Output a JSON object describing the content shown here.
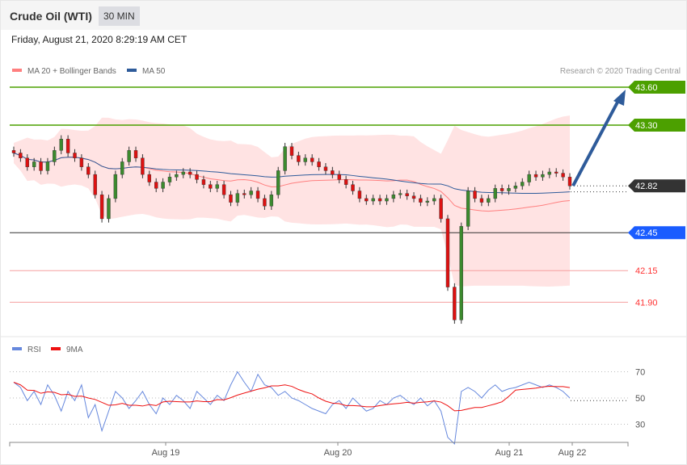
{
  "header": {
    "title": "Crude Oil (WTI)",
    "timeframe": "30 MIN",
    "date": "Friday, August 21, 2020 8:29:19 AM CET"
  },
  "colors": {
    "bb": "#ff7f7f",
    "ma50": "#2e5b9a",
    "up": "#3c8a2e",
    "down": "#d11",
    "resist": "#4ca000",
    "pivot": "#1a5cff",
    "support": "#ff3333",
    "last": "#333333",
    "rsi": "#6688dd",
    "rsi_ma": "#ee1111"
  },
  "chart_data": [
    {
      "type": "candlestick",
      "legend": [
        {
          "name": "MA 20 + Bollinger Bands"
        },
        {
          "name": "MA 50"
        }
      ],
      "credit": "Research © 2020 Trading Central",
      "closes": [
        43.08,
        43.04,
        42.97,
        43.01,
        42.94,
        43.01,
        43.1,
        43.19,
        43.08,
        43.04,
        42.97,
        42.91,
        42.75,
        42.56,
        42.72,
        42.91,
        43.01,
        43.1,
        43.04,
        42.91,
        42.85,
        42.8,
        42.85,
        42.89,
        42.91,
        42.93,
        42.91,
        42.87,
        42.83,
        42.8,
        42.83,
        42.75,
        42.69,
        42.76,
        42.75,
        42.78,
        42.72,
        42.66,
        42.75,
        42.94,
        43.13,
        43.06,
        43.01,
        43.04,
        43.01,
        42.97,
        42.94,
        42.91,
        42.87,
        42.83,
        42.78,
        42.72,
        42.7,
        42.72,
        42.7,
        42.72,
        42.75,
        42.76,
        42.74,
        42.72,
        42.69,
        42.7,
        42.72,
        42.56,
        42.02,
        41.76,
        42.5,
        42.78,
        42.72,
        42.69,
        42.72,
        42.8,
        42.78,
        42.8,
        42.82,
        42.85,
        42.91,
        42.89,
        42.91,
        42.93,
        42.92,
        42.89,
        42.82
      ],
      "levels": [
        {
          "value": 43.6,
          "label": "43.60",
          "kind": "resistance"
        },
        {
          "value": 43.3,
          "label": "43.30",
          "kind": "resistance"
        },
        {
          "value": 42.82,
          "label": "42.82",
          "kind": "last"
        },
        {
          "value": 42.45,
          "label": "42.45",
          "kind": "pivot"
        },
        {
          "value": 42.15,
          "label": "42.15",
          "kind": "support"
        },
        {
          "value": 41.9,
          "label": "41.90",
          "kind": "support"
        }
      ],
      "target_arrow": {
        "from": 42.82,
        "to": 43.6
      },
      "xticks": [
        "Aug 19",
        "Aug 20",
        "Aug 21",
        "Aug 22"
      ]
    },
    {
      "type": "line",
      "legend": [
        {
          "name": "RSI"
        },
        {
          "name": "9MA"
        }
      ],
      "yticks": [
        70,
        50,
        30
      ],
      "rsi": [
        62,
        58,
        48,
        55,
        45,
        60,
        52,
        40,
        55,
        48,
        60,
        35,
        45,
        25,
        40,
        55,
        50,
        42,
        48,
        55,
        45,
        38,
        50,
        45,
        52,
        48,
        42,
        55,
        50,
        45,
        52,
        48,
        60,
        70,
        62,
        55,
        68,
        60,
        58,
        52,
        55,
        50,
        48,
        45,
        42,
        40,
        38,
        45,
        48,
        42,
        50,
        45,
        40,
        42,
        48,
        45,
        50,
        52,
        48,
        45,
        50,
        44,
        48,
        40,
        20,
        15,
        55,
        58,
        55,
        50,
        56,
        60,
        55,
        57,
        58,
        60,
        62,
        60,
        58,
        60,
        58,
        55,
        50
      ]
    }
  ]
}
